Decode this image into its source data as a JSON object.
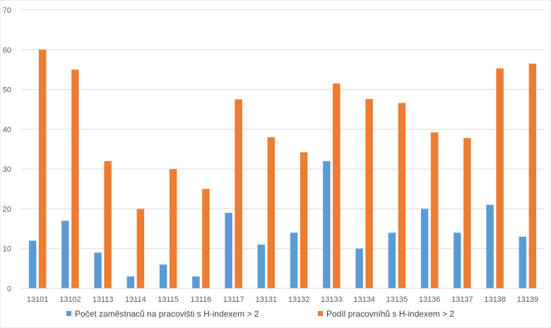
{
  "chart_data": {
    "type": "bar",
    "title": "",
    "xlabel": "",
    "ylabel": "",
    "ylim": [
      0,
      70
    ],
    "yticks": [
      0,
      10,
      20,
      30,
      40,
      50,
      60,
      70
    ],
    "grid": true,
    "legend_position": "bottom",
    "categories": [
      "13101",
      "13102",
      "13113",
      "13114",
      "13115",
      "13116",
      "13117",
      "13131",
      "13132",
      "13133",
      "13134",
      "13135",
      "13136",
      "13137",
      "13138",
      "13139"
    ],
    "series": [
      {
        "name": "Počet zaměstnaců na pracovišti s H-indexem  > 2",
        "color": "#5b9bd5",
        "values": [
          12,
          17,
          9,
          3,
          6,
          3,
          19,
          11,
          14,
          32,
          10,
          14,
          20,
          14,
          21,
          13
        ]
      },
      {
        "name": "Podíl pracovníhů s H-indexem > 2",
        "color": "#ed7d31",
        "values": [
          60,
          55,
          32,
          20,
          30,
          25,
          47.5,
          38,
          34.2,
          51.5,
          47.6,
          46.6,
          39.2,
          37.8,
          55.3,
          56.5
        ]
      }
    ]
  }
}
